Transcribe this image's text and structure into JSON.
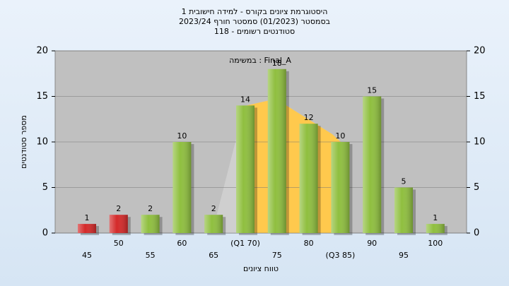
{
  "chart_data": {
    "type": "bar",
    "title": "היסטוגרמת ציונים בקורס - למידה חישובית 1",
    "subtitle": "בסמסטר  (01/2023)  סמסטר חורף 2023/24",
    "subtitle2": "סטודנטים רשומים - 118",
    "annotation": "במשימה : Final_A",
    "x_label": "טווח ציונים",
    "y_label": "מספר סטודנטים",
    "categories": [
      "45",
      "50",
      "55",
      "60",
      "65",
      "(Q1 70)",
      "75",
      "80",
      "(Q3 85)",
      "90",
      "95",
      "100"
    ],
    "values": [
      1,
      2,
      2,
      10,
      2,
      14,
      18,
      12,
      10,
      15,
      5,
      1
    ],
    "colors": [
      "#d42a2a",
      "#d42a2a",
      "#8fbf3f",
      "#8fbf3f",
      "#8fbf3f",
      "#8fbf3f",
      "#8fbf3f",
      "#8fbf3f",
      "#8fbf3f",
      "#8fbf3f",
      "#8fbf3f",
      "#8fbf3f"
    ],
    "ylim": [
      0,
      20
    ],
    "yticks": [
      0,
      5,
      10,
      15,
      20
    ],
    "grid": true
  }
}
